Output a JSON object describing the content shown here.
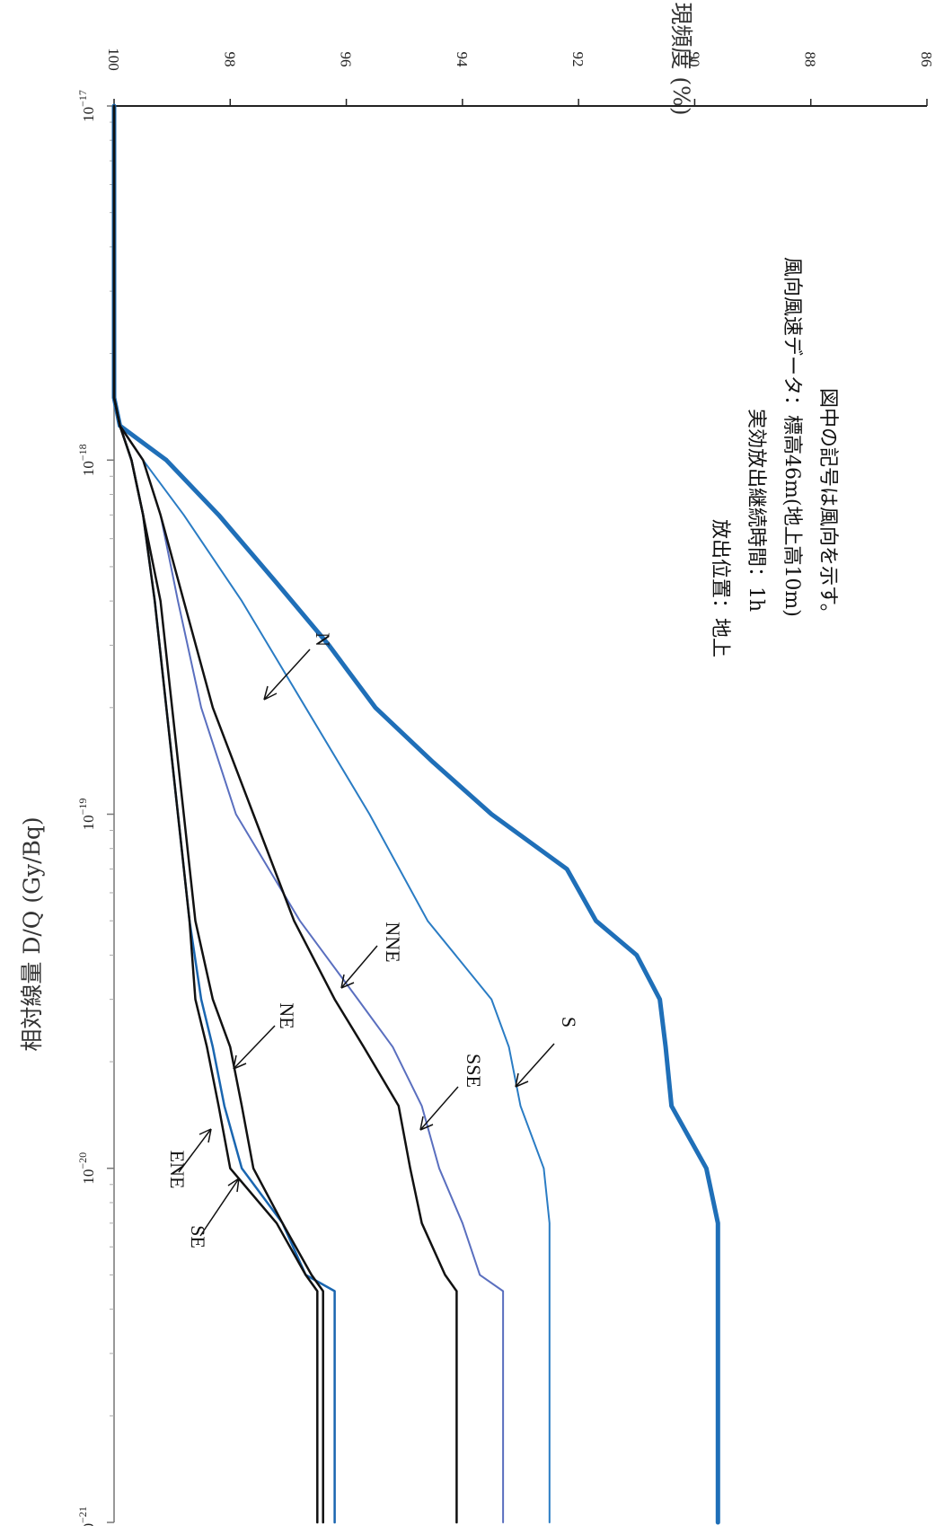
{
  "chart_data": {
    "type": "line",
    "orientation": "rotated-90-clockwise",
    "xlabel": "相対線量 D/Q (Gy/Bq)",
    "ylabel": "累積出現頻度 (%)",
    "x_scale": "log",
    "xlim": [
      1e-21,
      1e-17
    ],
    "ylim": [
      86,
      100
    ],
    "x_ticks": [
      {
        "value": 1e-17,
        "base": "10",
        "exp": "−17"
      },
      {
        "value": 1e-18,
        "base": "10",
        "exp": "−18"
      },
      {
        "value": 1e-19,
        "base": "10",
        "exp": "−19"
      },
      {
        "value": 1e-20,
        "base": "10",
        "exp": "−20"
      },
      {
        "value": 1e-21,
        "base": "10",
        "exp": "−21"
      }
    ],
    "y_ticks": [
      "100",
      "98",
      "96",
      "94",
      "92",
      "90",
      "88",
      "86"
    ],
    "grid": false,
    "notes": [
      "放出位置：地上",
      "実効放出継続時間：1h",
      "風向風速データ：標高46m(地上高10m)",
      "図中の記号は風向を示す。"
    ],
    "series": [
      {
        "name": "N",
        "color": "#1f6fb8",
        "width": 5,
        "x": [
          1e-21,
          1.6e-21,
          3e-21,
          5e-21,
          7e-21,
          1e-20,
          1.5e-20,
          2.2e-20,
          3e-20,
          4e-20,
          5e-20,
          7e-20,
          1e-19,
          1.4e-19,
          2e-19,
          3e-19,
          4.5e-19,
          7e-19,
          1e-18,
          1.25e-18,
          1.5e-18,
          1e-17
        ],
        "y": [
          89.6,
          89.6,
          89.6,
          89.6,
          89.6,
          89.8,
          90.4,
          90.5,
          90.6,
          91.0,
          91.7,
          92.2,
          93.5,
          94.5,
          95.5,
          96.3,
          97.2,
          98.2,
          99.1,
          99.9,
          100,
          100
        ]
      },
      {
        "name": "S",
        "color": "#2a7cc4",
        "width": 2,
        "x": [
          1e-21,
          3e-21,
          5e-21,
          7e-21,
          1e-20,
          1.5e-20,
          2.2e-20,
          3e-20,
          5e-20,
          1e-19,
          2e-19,
          4e-19,
          7e-19,
          1e-18,
          1.25e-18,
          1.5e-18,
          1e-17
        ],
        "y": [
          92.5,
          92.5,
          92.5,
          92.5,
          92.6,
          93.0,
          93.2,
          93.5,
          94.6,
          95.6,
          96.7,
          97.8,
          98.8,
          99.5,
          99.9,
          100,
          100
        ]
      },
      {
        "name": "SSE",
        "color": "#5a6fbf",
        "width": 2,
        "x": [
          1e-21,
          3e-21,
          4.5e-21,
          5e-21,
          7e-21,
          1e-20,
          1.5e-20,
          2.2e-20,
          3e-20,
          5e-20,
          1e-19,
          2e-19,
          4e-19,
          7e-19,
          1e-18,
          1.25e-18,
          1.5e-18,
          1e-17
        ],
        "y": [
          93.3,
          93.3,
          93.3,
          93.7,
          94.0,
          94.4,
          94.7,
          95.2,
          95.8,
          96.8,
          97.9,
          98.5,
          98.9,
          99.2,
          99.5,
          99.9,
          100,
          100
        ]
      },
      {
        "name": "NNE",
        "color": "#111111",
        "width": 2.5,
        "x": [
          1e-21,
          3e-21,
          4.5e-21,
          5e-21,
          7e-21,
          1e-20,
          1.5e-20,
          2.2e-20,
          3e-20,
          5e-20,
          1e-19,
          2e-19,
          4e-19,
          7e-19,
          1e-18,
          1.25e-18,
          1.5e-18,
          1e-17
        ],
        "y": [
          94.1,
          94.1,
          94.1,
          94.3,
          94.7,
          94.9,
          95.1,
          95.7,
          96.2,
          96.9,
          97.6,
          98.3,
          98.8,
          99.2,
          99.5,
          99.9,
          100,
          100
        ]
      },
      {
        "name": "SE",
        "color": "#1a66b0",
        "width": 2.5,
        "x": [
          1e-21,
          3e-21,
          4.5e-21,
          5e-21,
          7e-21,
          1e-20,
          1.5e-20,
          2.2e-20,
          3e-20,
          5e-20,
          1e-19,
          2e-19,
          4e-19,
          7e-19,
          1e-18,
          1.25e-18,
          1.5e-18,
          1e-17
        ],
        "y": [
          96.2,
          96.2,
          96.2,
          96.7,
          97.1,
          97.8,
          98.1,
          98.3,
          98.5,
          98.7,
          98.9,
          99.1,
          99.3,
          99.5,
          99.7,
          99.9,
          100,
          100
        ]
      },
      {
        "name": "NE",
        "color": "#111111",
        "width": 2.5,
        "x": [
          1e-21,
          3e-21,
          4.5e-21,
          5e-21,
          7e-21,
          1e-20,
          1.5e-20,
          2.2e-20,
          3e-20,
          5e-20,
          1e-19,
          2e-19,
          4e-19,
          7e-19,
          1e-18,
          1.25e-18,
          1.5e-18,
          1e-17
        ],
        "y": [
          96.4,
          96.4,
          96.4,
          96.6,
          97.1,
          97.6,
          97.8,
          98.0,
          98.3,
          98.6,
          98.8,
          99.0,
          99.2,
          99.5,
          99.7,
          99.9,
          100,
          100
        ]
      },
      {
        "name": "ENE",
        "color": "#111111",
        "width": 2.5,
        "x": [
          1e-21,
          3e-21,
          4.5e-21,
          5e-21,
          7e-21,
          1e-20,
          1.5e-20,
          2.2e-20,
          3e-20,
          5e-20,
          1e-19,
          2e-19,
          4e-19,
          7e-19,
          1e-18,
          1.25e-18,
          1.5e-18,
          1e-17
        ],
        "y": [
          96.5,
          96.5,
          96.5,
          96.7,
          97.2,
          98.0,
          98.2,
          98.4,
          98.6,
          98.7,
          98.9,
          99.1,
          99.3,
          99.5,
          99.7,
          99.9,
          100,
          100
        ]
      }
    ]
  }
}
